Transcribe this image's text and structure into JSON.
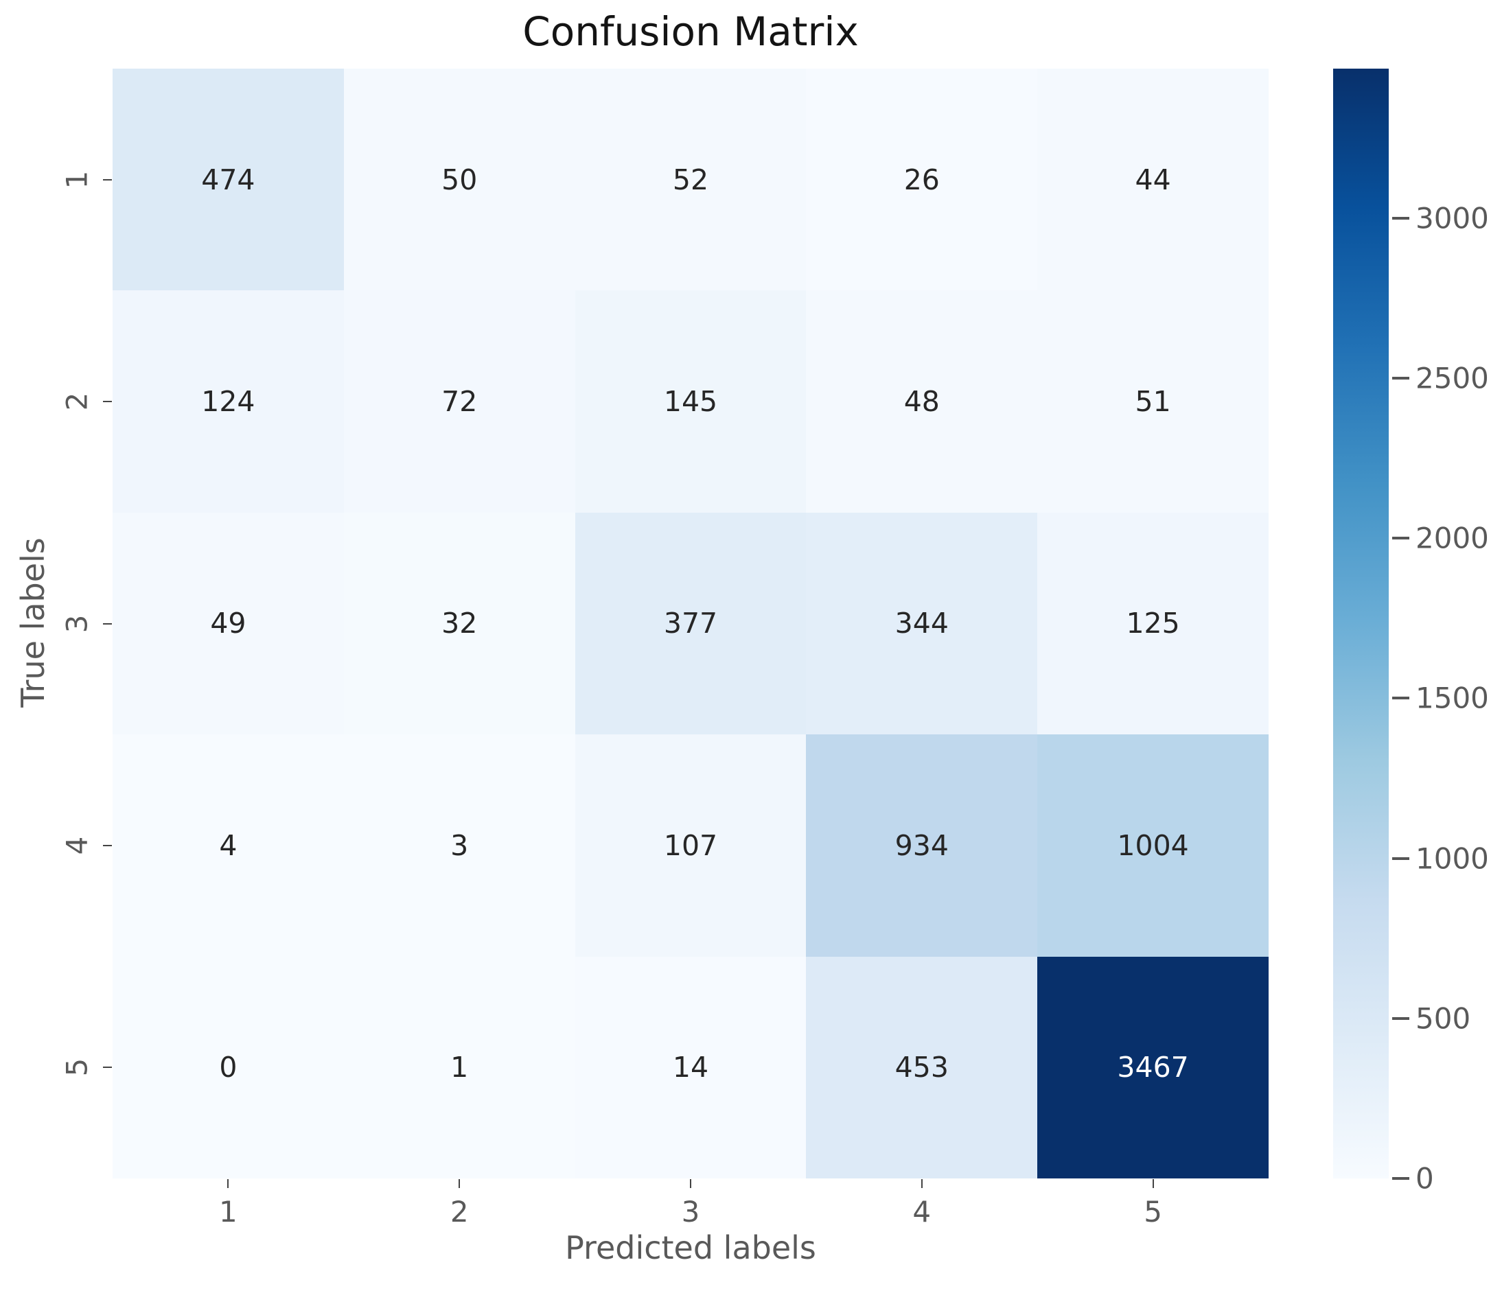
{
  "title": "Confusion Matrix",
  "chart_data": {
    "type": "heatmap",
    "title": "Confusion Matrix",
    "xlabel": "Predicted labels",
    "ylabel": "True labels",
    "x_tick_labels": [
      "1",
      "2",
      "3",
      "4",
      "5"
    ],
    "y_tick_labels": [
      "1",
      "2",
      "3",
      "4",
      "5"
    ],
    "matrix": [
      [
        474,
        50,
        52,
        26,
        44
      ],
      [
        124,
        72,
        145,
        48,
        51
      ],
      [
        49,
        32,
        377,
        344,
        125
      ],
      [
        4,
        3,
        107,
        934,
        1004
      ],
      [
        0,
        1,
        14,
        453,
        3467
      ]
    ],
    "colormap": "Blues",
    "vmin": 0,
    "vmax": 3467,
    "colorbar_ticks": [
      0,
      500,
      1000,
      1500,
      2000,
      2500,
      3000
    ],
    "colorbar_position": "right",
    "grid": false
  },
  "colors": {
    "background": "#ffffff",
    "title_text": "#141414",
    "tick_label_text": "#595959",
    "axis_label_text": "#595959",
    "tick_mark": "#444444",
    "annotation_dark": "#262626",
    "annotation_light": "#ffffff",
    "blues_anchors": [
      "#f7fbff",
      "#deebf7",
      "#c6dbef",
      "#9ecae1",
      "#6baed6",
      "#4292c6",
      "#2171b5",
      "#08519c",
      "#08306b"
    ]
  }
}
